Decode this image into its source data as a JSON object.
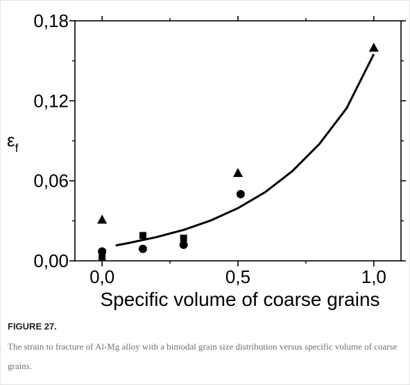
{
  "figure": {
    "label": "FIGURE 27.",
    "caption": "The strain to fracture of Al-Mg alloy with a bimodal grain size distribution versus specific volume of coarse grains."
  },
  "chart_data": {
    "type": "scatter",
    "xlabel": "Specific volume of coarse grains",
    "ylabel_main": "ε",
    "ylabel_sub": "f",
    "xlim": [
      -0.1,
      1.1
    ],
    "ylim": [
      0.0,
      0.18
    ],
    "xticks": [
      0.0,
      0.5,
      1.0
    ],
    "xtick_labels": [
      "0,0",
      "0,5",
      "1,0"
    ],
    "yticks": [
      0.0,
      0.06,
      0.12,
      0.18
    ],
    "ytick_labels": [
      "0,00",
      "0,06",
      "0,12",
      "0,18"
    ],
    "grid": false,
    "series": [
      {
        "marker": "triangle",
        "x": [
          0.0,
          0.5,
          1.0
        ],
        "y": [
          0.031,
          0.066,
          0.16
        ]
      },
      {
        "marker": "circle",
        "x": [
          0.0,
          0.15,
          0.3,
          0.51
        ],
        "y": [
          0.007,
          0.009,
          0.012,
          0.05
        ]
      },
      {
        "marker": "square",
        "x": [
          0.0,
          0.15,
          0.3
        ],
        "y": [
          0.003,
          0.019,
          0.017
        ]
      }
    ],
    "trend_curve": {
      "x": [
        0.05,
        0.1,
        0.2,
        0.3,
        0.4,
        0.5,
        0.6,
        0.7,
        0.8,
        0.9,
        1.0
      ],
      "y": [
        0.0115,
        0.0135,
        0.0178,
        0.0232,
        0.0303,
        0.0395,
        0.0515,
        0.0672,
        0.0877,
        0.1145,
        0.155
      ]
    }
  }
}
